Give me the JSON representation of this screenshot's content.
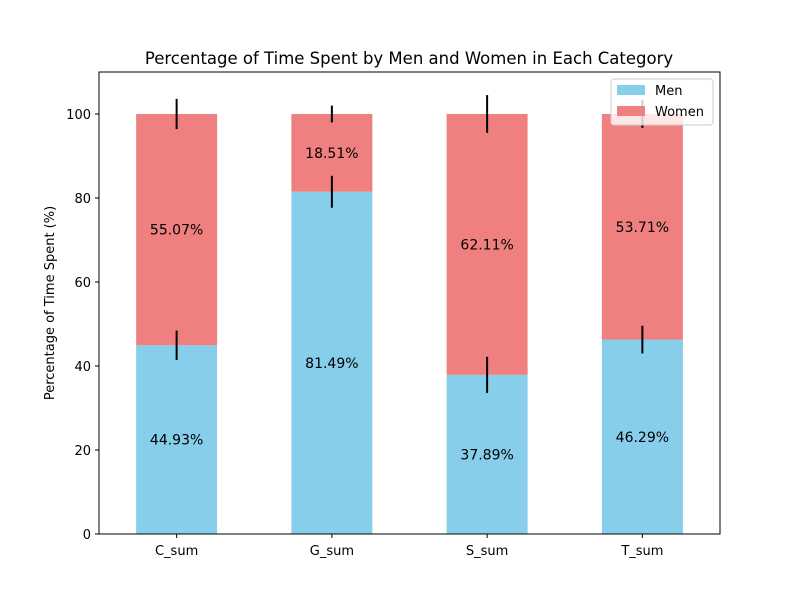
{
  "chart_data": {
    "type": "bar",
    "stacked": true,
    "title": "Percentage of Time Spent by Men and Women in Each Category",
    "xlabel": "",
    "ylabel": "Percentage of Time Spent (%)",
    "ylim": [
      0,
      110
    ],
    "yticks": [
      0,
      20,
      40,
      60,
      80,
      100
    ],
    "categories": [
      "C_sum",
      "G_sum",
      "S_sum",
      "T_sum"
    ],
    "series": [
      {
        "name": "Men",
        "color": "#87ceeb",
        "values": [
          44.93,
          81.49,
          37.89,
          46.29
        ],
        "labels": [
          "44.93%",
          "81.49%",
          "37.89%",
          "46.29%"
        ],
        "error": [
          3.5,
          3.8,
          4.3,
          3.3
        ]
      },
      {
        "name": "Women",
        "color": "#f08080",
        "values": [
          55.07,
          18.51,
          62.11,
          53.71
        ],
        "labels": [
          "55.07%",
          "18.51%",
          "62.11%",
          "53.71%"
        ],
        "error": [
          3.6,
          2.0,
          4.5,
          3.3
        ]
      }
    ],
    "grid": false,
    "legend_position": "top-right"
  }
}
